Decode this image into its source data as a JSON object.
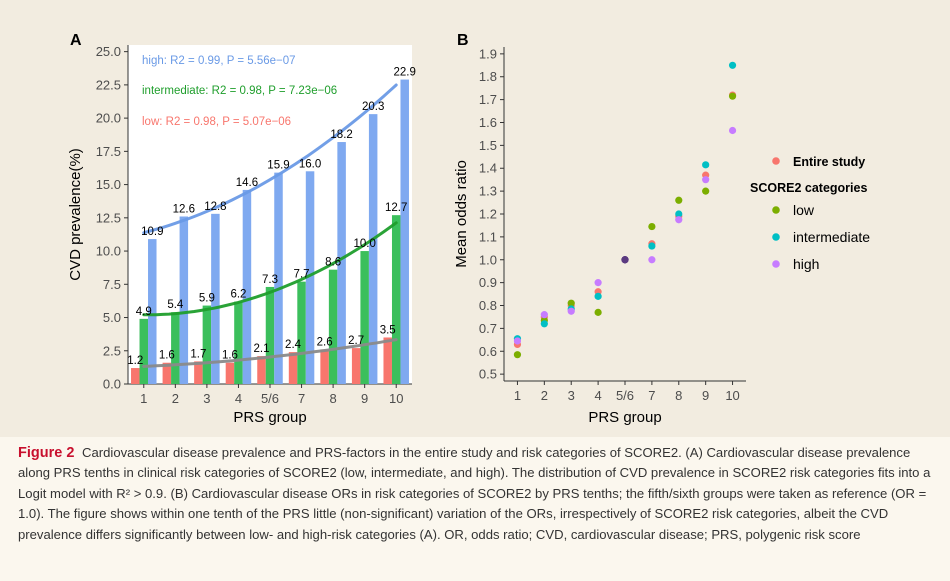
{
  "chart_data": [
    {
      "panel_label": "A",
      "type": "bar",
      "xlabel": "PRS group",
      "ylabel": "CVD prevalence(%)",
      "categories": [
        "1",
        "2",
        "3",
        "4",
        "5/6",
        "7",
        "8",
        "9",
        "10"
      ],
      "y_ticks": [
        "0.0",
        "2.5",
        "5.0",
        "7.5",
        "10.0",
        "12.5",
        "15.0",
        "17.5",
        "20.0",
        "22.5",
        "25.0"
      ],
      "ylim": [
        0,
        25.5
      ],
      "series": [
        {
          "key": "low",
          "color": "#f8766d",
          "values": [
            1.2,
            1.6,
            1.7,
            1.6,
            2.1,
            2.4,
            2.6,
            2.7,
            3.5
          ],
          "value_labels": [
            "1.2",
            "1.6",
            "1.7",
            "1.6",
            "2.1",
            "2.4",
            "2.6",
            "2.7",
            "3.5"
          ],
          "fit": "low: R2 = 0.98, P = 5.07e−06"
        },
        {
          "key": "intermediate",
          "color": "#3bbf5c",
          "values": [
            4.9,
            5.4,
            5.9,
            6.2,
            7.3,
            7.7,
            8.6,
            10.0,
            12.7
          ],
          "value_labels": [
            "4.9",
            "5.4",
            "5.9",
            "6.2",
            "7.3",
            "7.7",
            "8.6",
            "10.0",
            "12.7"
          ],
          "fit": "intermediate: R2 = 0.98, P = 7.23e−06"
        },
        {
          "key": "high",
          "color": "#7fa9f0",
          "values": [
            10.9,
            12.6,
            12.8,
            14.6,
            15.9,
            16.0,
            18.2,
            20.3,
            22.9
          ],
          "value_labels": [
            "10.9",
            "12.6",
            "12.8",
            "14.6",
            "15.9",
            "16.0",
            "18.2",
            "20.3",
            "22.9"
          ],
          "fit": "high: R2 = 0.99, P = 5.56e−07"
        }
      ],
      "fit_line_colors": {
        "low": "#8a8a8a",
        "intermediate": "#1f9e2c",
        "high": "#6a9ae6"
      },
      "fit_label_colors": {
        "low": "#f8766d",
        "intermediate": "#1f9e2c",
        "high": "#6a9ae6"
      },
      "grid": false
    },
    {
      "panel_label": "B",
      "type": "scatter",
      "xlabel": "PRS group",
      "ylabel": "Mean odds ratio",
      "categories": [
        "1",
        "2",
        "3",
        "4",
        "5/6",
        "7",
        "8",
        "9",
        "10"
      ],
      "y_ticks": [
        "0.5",
        "0.6",
        "0.7",
        "0.8",
        "0.9",
        "1.0",
        "1.1",
        "1.2",
        "1.3",
        "1.4",
        "1.5",
        "1.6",
        "1.7",
        "1.8",
        "1.9"
      ],
      "ylim": [
        0.47,
        1.93
      ],
      "legend_position": "right",
      "legend_title": "SCORE2 categories",
      "series": [
        {
          "name": "Entire study",
          "color": "#f8766d",
          "values": [
            0.63,
            0.75,
            0.8,
            0.86,
            1.0,
            1.07,
            1.19,
            1.37,
            1.72
          ]
        },
        {
          "name": "low",
          "color": "#7cae00",
          "values": [
            0.585,
            0.735,
            0.81,
            0.77,
            1.0,
            1.145,
            1.26,
            1.3,
            1.715
          ]
        },
        {
          "name": "intermediate",
          "color": "#00bfc4",
          "values": [
            0.655,
            0.72,
            0.785,
            0.84,
            1.0,
            1.06,
            1.2,
            1.415,
            1.85
          ]
        },
        {
          "name": "high",
          "color": "#c77cff",
          "values": [
            0.645,
            0.76,
            0.775,
            0.9,
            1.0,
            1.0,
            1.175,
            1.35,
            1.565
          ]
        }
      ],
      "reference_color": "#5b3a80",
      "grid": false
    }
  ],
  "caption": {
    "title": "Figure 2",
    "text": "Cardiovascular disease prevalence and PRS-factors in the entire study and risk categories of SCORE2. (A) Cardiovascular disease prevalence along PRS tenths in clinical risk categories of SCORE2 (low, intermediate, and high). The distribution of CVD prevalence in SCORE2 risk categories fits into a Logit model with R² > 0.9. (B) Cardiovascular disease ORs in risk categories of SCORE2 by PRS tenths; the fifth/sixth groups were taken as reference (OR = 1.0). The figure shows within one tenth of the PRS little (non-significant) variation of the ORs, irrespectively of SCORE2 risk categories, albeit the CVD prevalence differs significantly between low- and high-risk categories (A). OR, odds ratio; CVD, cardiovascular disease; PRS, polygenic risk score"
  }
}
